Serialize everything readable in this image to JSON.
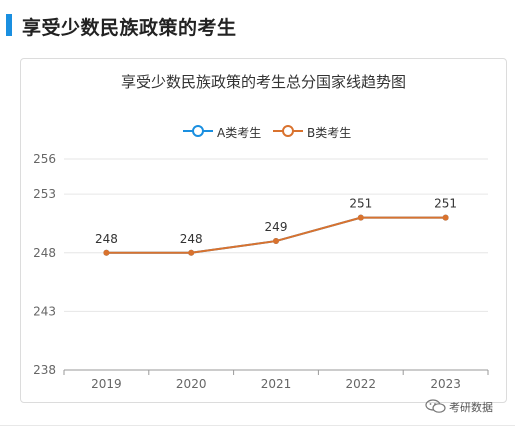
{
  "section": {
    "title": "享受少数民族政策的考生"
  },
  "watermark": {
    "text": "考研数据",
    "icon": "wechat-icon"
  },
  "colors": {
    "accent": "#1a8fe0",
    "seriesA": "#1a8fe0",
    "seriesB": "#d9722e",
    "grid": "#e6e6e6",
    "axis": "#999999"
  },
  "chart_data": {
    "type": "line",
    "title": "享受少数民族政策的考生总分国家线趋势图",
    "categories": [
      "2019",
      "2020",
      "2021",
      "2022",
      "2023"
    ],
    "y_ticks": [
      238,
      243,
      248,
      253,
      256
    ],
    "ylim": [
      238,
      256
    ],
    "grid": true,
    "legend_position": "top-center",
    "series": [
      {
        "name": "A类考生",
        "values": [
          248,
          248,
          249,
          251,
          251
        ]
      },
      {
        "name": "B类考生",
        "values": [
          248,
          248,
          249,
          251,
          251
        ]
      }
    ],
    "data_labels": [
      "248",
      "248",
      "249",
      "251",
      "251"
    ]
  }
}
